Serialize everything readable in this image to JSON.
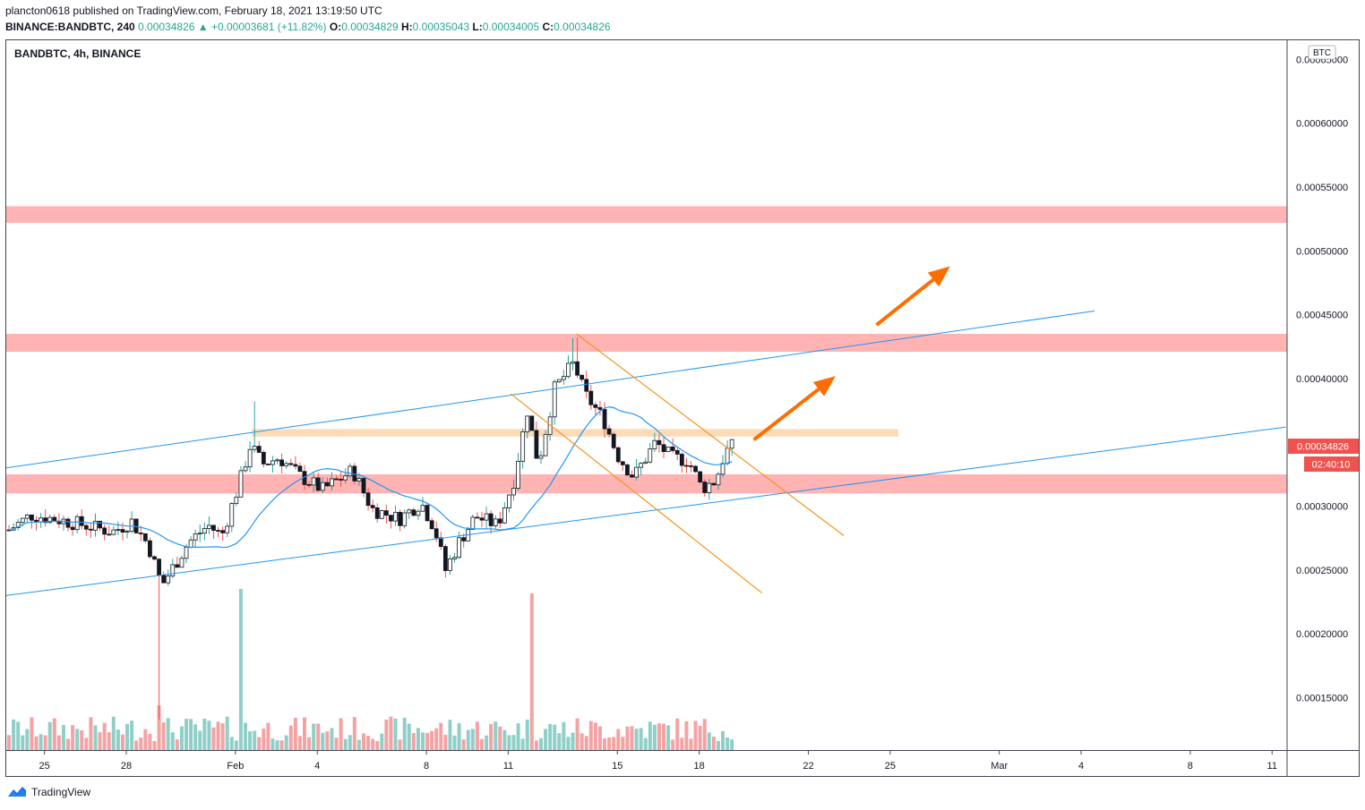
{
  "header": {
    "published": "plancton0618 published on TradingView.com, February 18, 2021 13:19:50 UTC",
    "symbol_line": {
      "symbol": "BINANCE:BANDBTC, 240",
      "last": "0.00034826",
      "change": "▲ +0.00003681 (+11.82%)",
      "o_label": "O:",
      "o": "0.00034829",
      "h_label": "H:",
      "h": "0.00035043",
      "l_label": "L:",
      "l": "0.00034005",
      "c_label": "C:",
      "c": "0.00034826"
    }
  },
  "chart_title": "BANDBTC, 4h, BINANCE",
  "currency_badge": "BTC",
  "price_tag": "0.00034826",
  "countdown_tag": "02:40:10",
  "footer": {
    "brand": "TradingView"
  },
  "colors": {
    "up": "#26a69a",
    "down": "#ef5350",
    "candle_body": "#131722",
    "ma": "#2196f3",
    "zone_red": "#ffb3b3",
    "zone_orange": "#fcdcb8",
    "channel": "#f7941d",
    "arrow": "#ff6d00",
    "trendline": "#2196f3",
    "vol_up": "#8fcfc8",
    "vol_down": "#f3a3a3"
  },
  "chart_data": {
    "type": "candlestick",
    "title": "BANDBTC, 4h, BINANCE",
    "interval": "4h",
    "y_ticks": [
      "0.00015000",
      "0.00020000",
      "0.00025000",
      "0.00030000",
      "0.00035000",
      "0.00040000",
      "0.00045000",
      "0.00050000",
      "0.00055000",
      "0.00060000",
      "0.00065000"
    ],
    "y_range": [
      0.000109,
      0.000665
    ],
    "x_ticks": [
      {
        "label": "25",
        "day": -7
      },
      {
        "label": "28",
        "day": -4
      },
      {
        "label": "Feb",
        "day": 0
      },
      {
        "label": "4",
        "day": 3
      },
      {
        "label": "8",
        "day": 7
      },
      {
        "label": "11",
        "day": 10
      },
      {
        "label": "15",
        "day": 14
      },
      {
        "label": "18",
        "day": 17
      },
      {
        "label": "22",
        "day": 21
      },
      {
        "label": "25",
        "day": 24
      },
      {
        "label": "Mar",
        "day": 28
      },
      {
        "label": "4",
        "day": 31
      },
      {
        "label": "8",
        "day": 35
      },
      {
        "label": "11",
        "day": 38
      }
    ],
    "x_range_days": [
      -8.4,
      38.55
    ],
    "anchors": [
      {
        "day": -8.4,
        "price": 0.00028
      },
      {
        "day": -7.5,
        "price": 0.000293
      },
      {
        "day": -6.6,
        "price": 0.00029
      },
      {
        "day": -5.5,
        "price": 0.000285
      },
      {
        "day": -4.5,
        "price": 0.00028
      },
      {
        "day": -3.8,
        "price": 0.000288
      },
      {
        "day": -3.2,
        "price": 0.00027
      },
      {
        "day": -2.7,
        "price": 0.000238
      },
      {
        "day": -2.2,
        "price": 0.000255
      },
      {
        "day": -1.7,
        "price": 0.000272
      },
      {
        "day": -1.0,
        "price": 0.000285
      },
      {
        "day": -0.5,
        "price": 0.000277
      },
      {
        "day": 0.1,
        "price": 0.000315
      },
      {
        "day": 0.55,
        "price": 0.000348
      },
      {
        "day": 1.0,
        "price": 0.000333
      },
      {
        "day": 1.6,
        "price": 0.000338
      },
      {
        "day": 2.4,
        "price": 0.000323
      },
      {
        "day": 3.2,
        "price": 0.000313
      },
      {
        "day": 4.3,
        "price": 0.000328
      },
      {
        "day": 5.0,
        "price": 0.000298
      },
      {
        "day": 6.0,
        "price": 0.00029
      },
      {
        "day": 6.8,
        "price": 0.000303
      },
      {
        "day": 7.3,
        "price": 0.000283
      },
      {
        "day": 7.7,
        "price": 0.00025
      },
      {
        "day": 8.2,
        "price": 0.000272
      },
      {
        "day": 8.8,
        "price": 0.000292
      },
      {
        "day": 9.6,
        "price": 0.000285
      },
      {
        "day": 10.2,
        "price": 0.00032
      },
      {
        "day": 10.7,
        "price": 0.000375
      },
      {
        "day": 11.1,
        "price": 0.000333
      },
      {
        "day": 11.7,
        "price": 0.000392
      },
      {
        "day": 12.4,
        "price": 0.000412
      },
      {
        "day": 12.8,
        "price": 0.000388
      },
      {
        "day": 13.5,
        "price": 0.000368
      },
      {
        "day": 14.0,
        "price": 0.00034
      },
      {
        "day": 14.6,
        "price": 0.000323
      },
      {
        "day": 15.4,
        "price": 0.00035
      },
      {
        "day": 16.0,
        "price": 0.000338
      },
      {
        "day": 16.6,
        "price": 0.000336
      },
      {
        "day": 17.1,
        "price": 0.000314
      },
      {
        "day": 17.6,
        "price": 0.00032
      },
      {
        "day": 17.95,
        "price": 0.000342
      },
      {
        "day": 18.3,
        "price": 0.0003483
      }
    ],
    "moving_average": {
      "period": 20,
      "color": "#2196f3"
    },
    "horizontal_zones": [
      {
        "low": 0.000522,
        "high": 0.000535,
        "color": "#ffb3b3"
      },
      {
        "low": 0.000421,
        "high": 0.000435,
        "color": "#ffb3b3"
      },
      {
        "low": 0.00031,
        "high": 0.000325,
        "color": "#ffb3b3"
      },
      {
        "low": 0.0003545,
        "high": 0.0003605,
        "day_start": 0.6,
        "day_end": 24.3,
        "color": "#fcdcb8"
      }
    ],
    "trendlines": [
      {
        "from": {
          "day": -8.4,
          "price": 0.00033
        },
        "to": {
          "day": 31.5,
          "price": 0.000453
        }
      },
      {
        "from": {
          "day": -8.4,
          "price": 0.00023
        },
        "to": {
          "day": 38.5,
          "price": 0.000362
        }
      }
    ],
    "descending_channel": [
      {
        "from": {
          "day": 12.5,
          "price": 0.000435
        },
        "to": {
          "day": 22.3,
          "price": 0.000277
        }
      },
      {
        "from": {
          "day": 10.1,
          "price": 0.000388
        },
        "to": {
          "day": 19.3,
          "price": 0.000232
        }
      }
    ],
    "arrows": [
      {
        "from": {
          "day": 19.0,
          "price": 0.000352
        },
        "to": {
          "day": 22.0,
          "price": 0.000402
        }
      },
      {
        "from": {
          "day": 23.5,
          "price": 0.000442
        },
        "to": {
          "day": 26.2,
          "price": 0.000488
        }
      }
    ],
    "last_price": 0.00034826
  }
}
